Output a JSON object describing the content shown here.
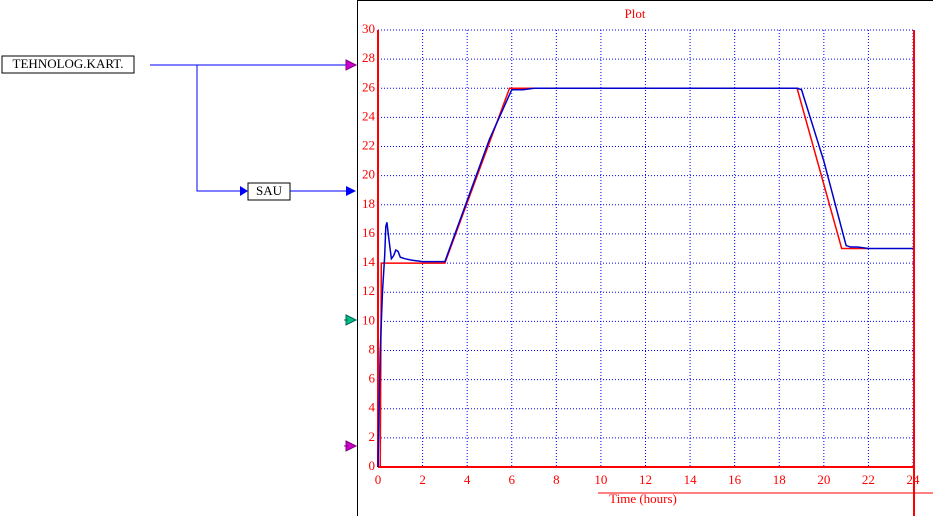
{
  "blocks": [
    "TEHNOLOG.KART.",
    "SAU"
  ],
  "chart_data": {
    "type": "line",
    "title": "Plot",
    "x_label": "Time (hours)",
    "xlim": [
      0,
      24
    ],
    "xticks": [
      0,
      2,
      4,
      6,
      8,
      10,
      12,
      14,
      16,
      18,
      20,
      22,
      24
    ],
    "ylim": [
      0,
      30
    ],
    "yticks": [
      0,
      2,
      4,
      6,
      8,
      10,
      12,
      14,
      16,
      18,
      20,
      22,
      24,
      26,
      28,
      30
    ],
    "grid": true,
    "series": [
      {
        "color": "#ff0000",
        "x": [
          0,
          0.1,
          0.15,
          3,
          5.9,
          18.8,
          20.8,
          22
        ],
        "values": [
          0,
          0,
          14,
          14,
          26,
          26,
          15,
          15
        ]
      },
      {
        "color": "#0000cc",
        "x": [
          0,
          0.05,
          0.1,
          0.2,
          0.3,
          0.35,
          0.4,
          0.5,
          0.6,
          0.7,
          0.8,
          0.9,
          1.0,
          1.2,
          1.5,
          2,
          3,
          5,
          6,
          6.5,
          7,
          18.8,
          19,
          20,
          21,
          21.2,
          21.5,
          22,
          24
        ],
        "values": [
          0,
          4,
          8,
          12,
          14.5,
          16.5,
          16.8,
          15.5,
          14.3,
          14.5,
          14.9,
          14.8,
          14.4,
          14.3,
          14.2,
          14.1,
          14.1,
          22.5,
          25.9,
          25.9,
          26,
          26,
          25.9,
          21,
          15.2,
          15.1,
          15.1,
          15,
          15
        ]
      }
    ]
  }
}
